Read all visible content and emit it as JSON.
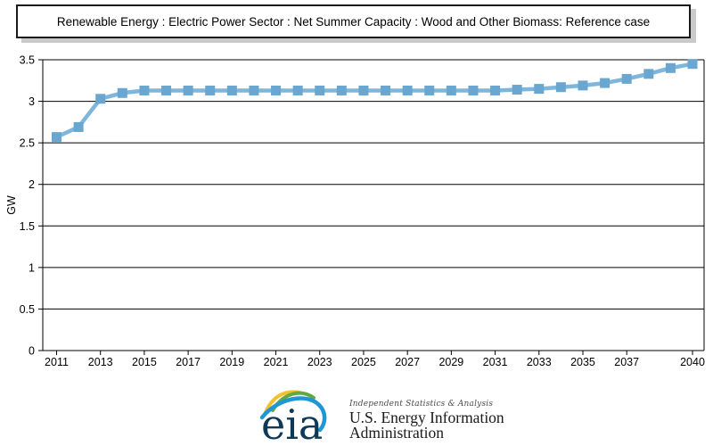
{
  "title": "Renewable Energy : Electric Power Sector : Net Summer Capacity : Wood and Other Biomass: Reference case",
  "chart_data": {
    "type": "line",
    "x": [
      2011,
      2012,
      2013,
      2014,
      2015,
      2016,
      2017,
      2018,
      2019,
      2020,
      2021,
      2022,
      2023,
      2024,
      2025,
      2026,
      2027,
      2028,
      2029,
      2030,
      2031,
      2032,
      2033,
      2034,
      2035,
      2036,
      2037,
      2038,
      2039,
      2040
    ],
    "series": [
      {
        "name": "Reference case",
        "values": [
          2.57,
          2.69,
          3.03,
          3.1,
          3.13,
          3.13,
          3.13,
          3.13,
          3.13,
          3.13,
          3.13,
          3.13,
          3.13,
          3.13,
          3.13,
          3.13,
          3.13,
          3.13,
          3.13,
          3.13,
          3.13,
          3.14,
          3.15,
          3.17,
          3.19,
          3.22,
          3.27,
          3.33,
          3.4,
          3.45
        ]
      }
    ],
    "title": "Renewable Energy : Electric Power Sector : Net Summer Capacity : Wood and Other Biomass: Reference case",
    "xlabel": "",
    "ylabel": "GW",
    "ylim": [
      0,
      3.5
    ],
    "ytick_step": 0.5,
    "xtick_labels": [
      "2011",
      "2013",
      "2015",
      "2017",
      "2019",
      "2021",
      "2023",
      "2025",
      "2027",
      "2029",
      "2031",
      "2033",
      "2035",
      "2037",
      "2040"
    ],
    "grid": "horizontal",
    "legend": "none",
    "line_color": "#7FB6DB",
    "marker_color": "#69A7D0",
    "marker_shape": "square"
  },
  "footer": {
    "logo_text": "eia",
    "tagline": "Independent Statistics & Analysis",
    "org_name_line1": "U.S. Energy Information",
    "org_name_line2": "Administration",
    "logo_colors": {
      "navy": "#0E3A57",
      "blue": "#1F97D4",
      "green": "#5FA845",
      "yellow": "#F2C12C"
    }
  }
}
